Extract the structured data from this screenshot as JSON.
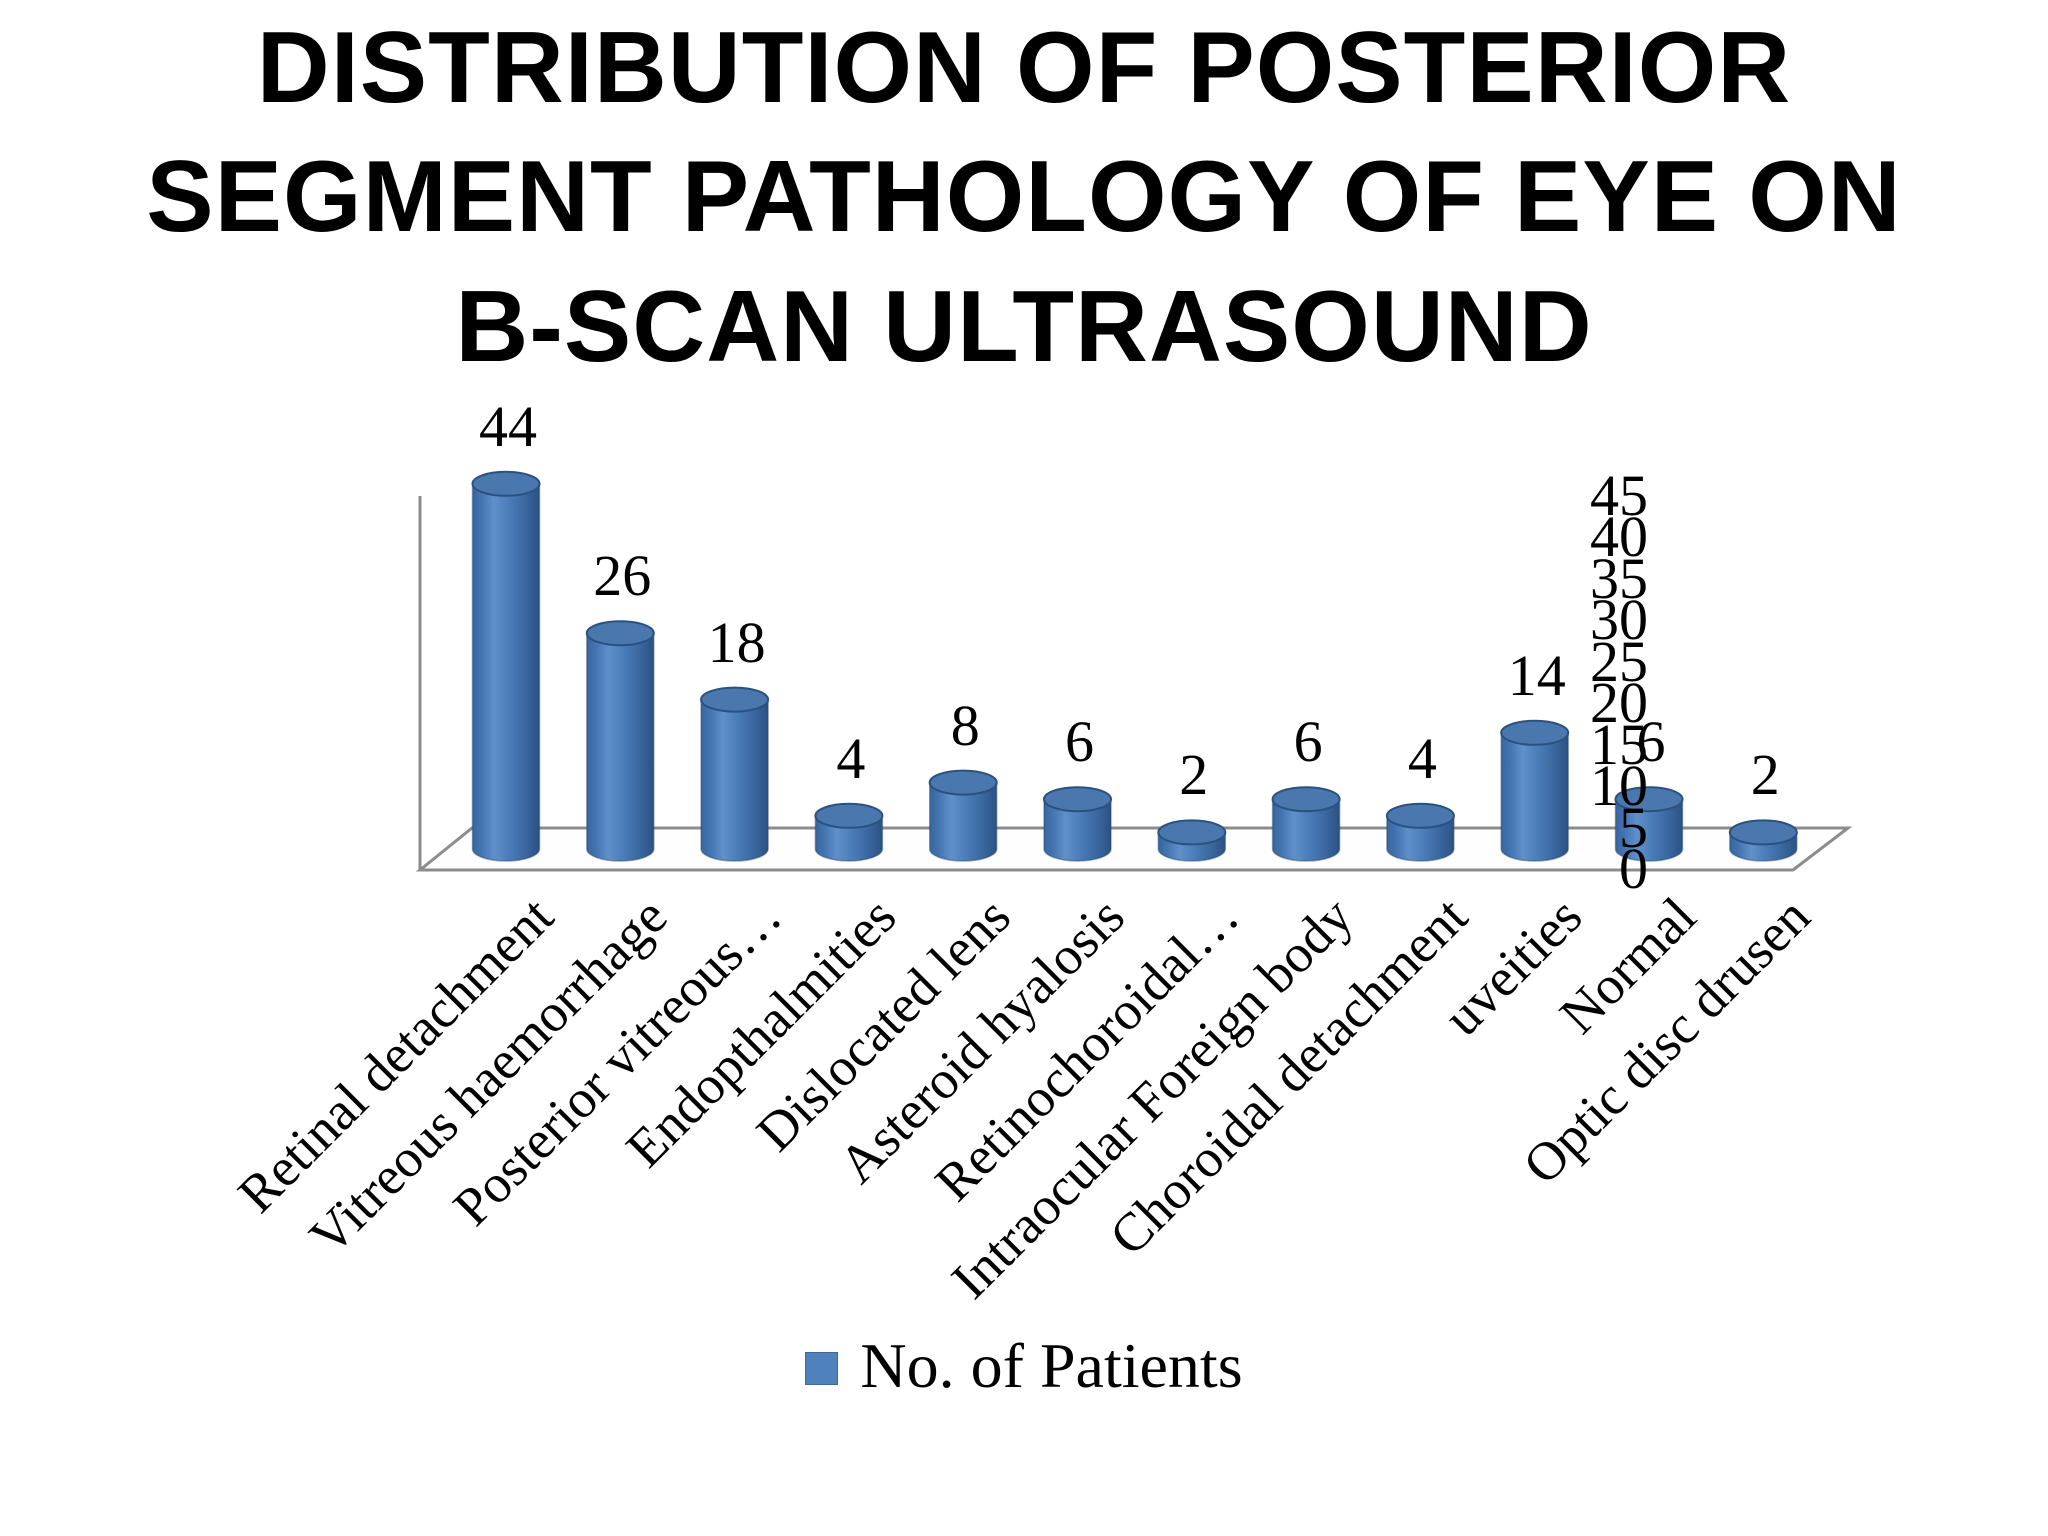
{
  "title_lines": [
    "DISTRIBUTION OF POSTERIOR",
    "SEGMENT PATHOLOGY OF EYE ON",
    "B-SCAN ULTRASOUND"
  ],
  "title_full": "DISTRIBUTION OF POSTERIOR SEGMENT PATHOLOGY OF EYE ON B-SCAN ULTRASOUND",
  "chart_data": {
    "type": "bar",
    "subtype": "3d-cylinder",
    "title": "DISTRIBUTION OF POSTERIOR SEGMENT PATHOLOGY OF EYE ON B-SCAN ULTRASOUND",
    "categories": [
      "Retinal detachment",
      "Vitreous haemorrhage",
      "Posterior vitreous…",
      "Endopthalmities",
      "Dislocated lens",
      "Asteroid hyalosis",
      "Retinochoroidal…",
      "Intraocular Foreign body",
      "Choroidal detachment",
      "uveities",
      "Normal",
      "Optic disc drusen"
    ],
    "values": [
      44,
      26,
      18,
      4,
      8,
      6,
      2,
      6,
      4,
      14,
      6,
      2
    ],
    "series_name": "No. of Patients",
    "xlabel": "",
    "ylabel": "",
    "ylim": [
      0,
      45
    ],
    "ytick_step": 5,
    "yticks": [
      0,
      5,
      10,
      15,
      20,
      25,
      30,
      35,
      40,
      45
    ],
    "grid": false,
    "legend": {
      "label": "No. of Patients",
      "position": "bottom",
      "swatch_color": "#4f81bd"
    },
    "bar_color": "#4f81bd",
    "bar_color_dark": "#2e5586",
    "bar_color_light": "#5f90ca",
    "axis_line_color": "#8c8c8c"
  }
}
